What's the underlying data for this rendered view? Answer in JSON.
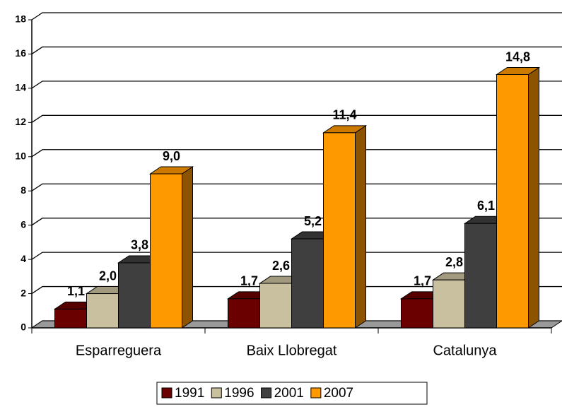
{
  "chart_data": {
    "type": "bar3d",
    "categories": [
      "Esparreguera",
      "Baix Llobregat",
      "Catalunya"
    ],
    "series": [
      {
        "name": "1991",
        "color": "#6b0000",
        "values": [
          1.1,
          1.7,
          1.7
        ],
        "value_labels": [
          "1,1",
          "1,7",
          "1,7"
        ]
      },
      {
        "name": "1996",
        "color": "#c9c09f",
        "values": [
          2.0,
          2.6,
          2.8
        ],
        "value_labels": [
          "2,0",
          "2,6",
          "2,8"
        ]
      },
      {
        "name": "2001",
        "color": "#3f3f3f",
        "values": [
          3.8,
          5.2,
          6.1
        ],
        "value_labels": [
          "3,8",
          "5,2",
          "6,1"
        ]
      },
      {
        "name": "2007",
        "color": "#ff9900",
        "values": [
          9.0,
          11.4,
          14.8
        ],
        "value_labels": [
          "9,0",
          "11,4",
          "14,8"
        ]
      }
    ],
    "ylim": [
      0,
      18
    ],
    "yticks": [
      0,
      2,
      4,
      6,
      8,
      10,
      12,
      14,
      16,
      18
    ],
    "grid": true,
    "legend": "bottom"
  }
}
